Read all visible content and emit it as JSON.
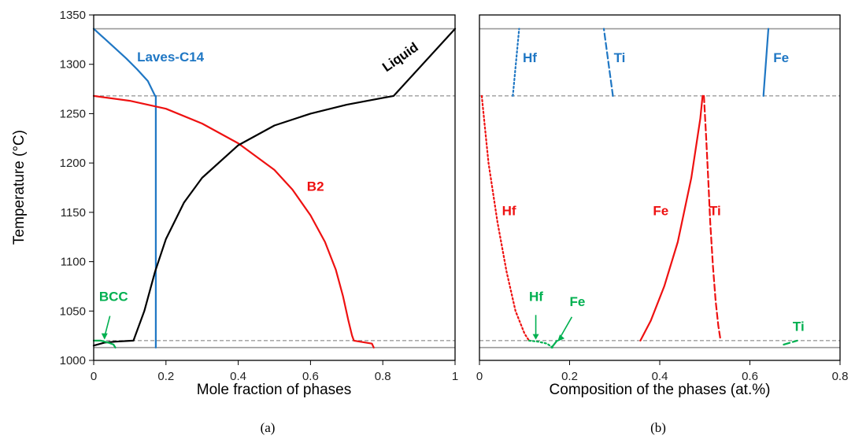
{
  "colors": {
    "blue": "#1f77c4",
    "red": "#ee1111",
    "black": "#000000",
    "green": "#00b050",
    "ref": "#999999"
  },
  "chart_data": [
    {
      "type": "line",
      "panel_label": "(a)",
      "xlabel": "Mole fraction of phases",
      "ylabel": "Temperature (°C)",
      "xlim": [
        0,
        1
      ],
      "ylim": [
        1000,
        1350
      ],
      "xticks": [
        "0",
        "0.2",
        "0.4",
        "0.6",
        "0.8",
        "1"
      ],
      "yticks": [
        "1000",
        "1050",
        "1100",
        "1150",
        "1200",
        "1250",
        "1300",
        "1350"
      ],
      "ref_lines": [
        {
          "y": 1336,
          "style": "solid"
        },
        {
          "y": 1268,
          "style": "dashed"
        },
        {
          "y": 1020,
          "style": "dashed"
        },
        {
          "y": 1013,
          "style": "solid"
        }
      ],
      "series": [
        {
          "name": "Laves-C14",
          "color": "blue",
          "dash": "solid",
          "x": [
            0,
            0.03,
            0.06,
            0.09,
            0.12,
            0.15,
            0.17,
            0.172,
            0.172
          ],
          "y": [
            1336,
            1326,
            1316,
            1306,
            1295,
            1283,
            1268,
            1268,
            1013
          ]
        },
        {
          "name": "B2",
          "color": "red",
          "dash": "solid",
          "x": [
            0,
            0.1,
            0.2,
            0.3,
            0.4,
            0.5,
            0.55,
            0.6,
            0.64,
            0.67,
            0.69,
            0.705,
            0.715,
            0.72,
            0.77,
            0.775
          ],
          "y": [
            1268,
            1263,
            1255,
            1240,
            1220,
            1193,
            1173,
            1147,
            1120,
            1092,
            1065,
            1040,
            1025,
            1020,
            1017,
            1013
          ]
        },
        {
          "name": "Liquid",
          "color": "black",
          "dash": "solid",
          "x": [
            0,
            0.03,
            0.06,
            0.11,
            0.14,
            0.17,
            0.2,
            0.25,
            0.3,
            0.4,
            0.5,
            0.6,
            0.7,
            0.8,
            0.83,
            1.0
          ],
          "y": [
            1015,
            1018,
            1019,
            1020,
            1050,
            1090,
            1123,
            1160,
            1185,
            1218,
            1238,
            1250,
            1259,
            1266,
            1268,
            1336
          ]
        },
        {
          "name": "BCC",
          "color": "green",
          "dash": "solid",
          "x": [
            0.0,
            0.02,
            0.04,
            0.055,
            0.06
          ],
          "y": [
            1020,
            1020,
            1018,
            1016,
            1013
          ]
        }
      ],
      "annotations": [
        {
          "text": "Laves-C14",
          "x": 0.12,
          "y": 1303,
          "color": "blue"
        },
        {
          "text": "B2",
          "x": 0.59,
          "y": 1172,
          "color": "red"
        },
        {
          "text": "Liquid",
          "x": 0.81,
          "y": 1292,
          "color": "black"
        },
        {
          "text": "BCC",
          "x": 0.015,
          "y": 1060,
          "color": "green"
        }
      ]
    },
    {
      "type": "line",
      "panel_label": "(b)",
      "xlabel": "Composition of the phases (at.%)",
      "ylabel": "",
      "xlim": [
        0,
        0.8
      ],
      "ylim": [
        1000,
        1350
      ],
      "xticks": [
        "0",
        "0.2",
        "0.4",
        "0.6",
        "0.8"
      ],
      "yticks": [],
      "ref_lines": [
        {
          "y": 1336,
          "style": "solid"
        },
        {
          "y": 1268,
          "style": "dashed"
        },
        {
          "y": 1020,
          "style": "dashed"
        },
        {
          "y": 1013,
          "style": "solid"
        }
      ],
      "series": [
        {
          "name": "Hf",
          "color": "blue",
          "dash": "dotted",
          "x": [
            0.074,
            0.088
          ],
          "y": [
            1268,
            1336
          ]
        },
        {
          "name": "Ti",
          "color": "blue",
          "dash": "dashed",
          "x": [
            0.296,
            0.276
          ],
          "y": [
            1268,
            1336
          ]
        },
        {
          "name": "Fe",
          "color": "blue",
          "dash": "solid",
          "x": [
            0.63,
            0.641
          ],
          "y": [
            1268,
            1336
          ]
        },
        {
          "name": "Hf",
          "color": "red",
          "dash": "dotted",
          "x": [
            0.005,
            0.02,
            0.04,
            0.06,
            0.08,
            0.1,
            0.11
          ],
          "y": [
            1268,
            1200,
            1140,
            1090,
            1050,
            1027,
            1020
          ]
        },
        {
          "name": "Fe",
          "color": "red",
          "dash": "solid",
          "x": [
            0.357,
            0.38,
            0.41,
            0.44,
            0.47,
            0.49,
            0.495
          ],
          "y": [
            1020,
            1040,
            1075,
            1120,
            1185,
            1245,
            1268
          ]
        },
        {
          "name": "Ti",
          "color": "red",
          "dash": "dashed",
          "x": [
            0.498,
            0.503,
            0.508,
            0.512,
            0.518,
            0.524,
            0.53,
            0.535
          ],
          "y": [
            1268,
            1225,
            1180,
            1140,
            1095,
            1060,
            1035,
            1020
          ]
        },
        {
          "name": "Hf",
          "color": "green",
          "dash": "dotted",
          "x": [
            0.11,
            0.13,
            0.15,
            0.162
          ],
          "y": [
            1020,
            1019,
            1017,
            1013
          ]
        },
        {
          "name": "Fe",
          "color": "green",
          "dash": "solid",
          "x": [
            0.16,
            0.167,
            0.172
          ],
          "y": [
            1013,
            1017,
            1020
          ]
        },
        {
          "name": "Ti",
          "color": "green",
          "dash": "dashed",
          "x": [
            0.675,
            0.69,
            0.705
          ],
          "y": [
            1016,
            1018,
            1020
          ]
        }
      ],
      "annotations": [
        {
          "text": "Hf",
          "x": 0.096,
          "y": 1302,
          "color": "blue"
        },
        {
          "text": "Ti",
          "x": 0.298,
          "y": 1302,
          "color": "blue"
        },
        {
          "text": "Fe",
          "x": 0.652,
          "y": 1302,
          "color": "blue"
        },
        {
          "text": "Hf",
          "x": 0.05,
          "y": 1147,
          "color": "red"
        },
        {
          "text": "Fe",
          "x": 0.385,
          "y": 1147,
          "color": "red"
        },
        {
          "text": "Ti",
          "x": 0.51,
          "y": 1147,
          "color": "red"
        },
        {
          "text": "Hf",
          "x": 0.11,
          "y": 1060,
          "color": "green"
        },
        {
          "text": "Fe",
          "x": 0.2,
          "y": 1055,
          "color": "green"
        },
        {
          "text": "Ti",
          "x": 0.695,
          "y": 1030,
          "color": "green"
        }
      ]
    }
  ]
}
